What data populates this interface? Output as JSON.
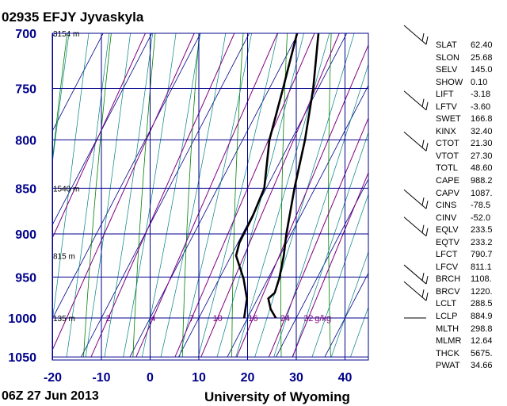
{
  "header": {
    "title": "02935 EFJY Jyvaskyla",
    "time": "06Z 27 Jun 2013",
    "source": "University of Wyoming"
  },
  "colors": {
    "grid": "#00008b",
    "temperature": "#000000",
    "dewpoint": "#000000",
    "dry_adiabat": "#008000",
    "moist_adiabat": "#008080",
    "mixing_ratio": "#800080",
    "tick_label": "#00008b"
  },
  "chart_data": {
    "type": "line",
    "title": "02935 EFJY Jyvaskyla",
    "xlabel": "",
    "ylabel": "",
    "x_axis": {
      "ticks": [
        -20,
        -10,
        0,
        10,
        20,
        30,
        40
      ],
      "range": [
        -20,
        45
      ]
    },
    "y_axis": {
      "scale": "log",
      "ticks": [
        700,
        750,
        800,
        850,
        900,
        950,
        1000,
        1050
      ],
      "range": [
        1050,
        700
      ]
    },
    "height_labels": [
      {
        "pressure": 700,
        "label": "3154 m"
      },
      {
        "pressure": 850,
        "label": "1540 m"
      },
      {
        "pressure": 925,
        "label": "815 m"
      },
      {
        "pressure": 1000,
        "label": "135 m"
      }
    ],
    "mixing_ratio_labels": [
      {
        "value": 2,
        "label": "2"
      },
      {
        "value": 4,
        "label": "4"
      },
      {
        "value": 7,
        "label": "7"
      },
      {
        "value": 10,
        "label": "10"
      },
      {
        "value": 16,
        "label": "16"
      },
      {
        "value": 24,
        "label": "24"
      },
      {
        "value": 32,
        "label": "32"
      }
    ],
    "mixing_ratio_unit": "g/kg",
    "series": [
      {
        "points": [
          {
            "p": 1000,
            "x": 25.8
          },
          {
            "p": 989,
            "x": 23.8
          },
          {
            "p": 976,
            "x": 22.2
          },
          {
            "p": 969,
            "x": 22.9
          },
          {
            "p": 952,
            "x": 22.3
          },
          {
            "p": 925,
            "x": 20.8
          },
          {
            "p": 900,
            "x": 19.0
          },
          {
            "p": 850,
            "x": 15.8
          },
          {
            "p": 800,
            "x": 12.8
          },
          {
            "p": 750,
            "x": 9.0
          },
          {
            "p": 700,
            "x": 4.2
          }
        ]
      },
      {
        "points": [
          {
            "p": 1000,
            "x": 19.3
          },
          {
            "p": 976,
            "x": 17.8
          },
          {
            "p": 952,
            "x": 15.0
          },
          {
            "p": 925,
            "x": 11.0
          },
          {
            "p": 910,
            "x": 10.3
          },
          {
            "p": 880,
            "x": 10.2
          },
          {
            "p": 850,
            "x": 9.6
          },
          {
            "p": 800,
            "x": 5.5
          },
          {
            "p": 750,
            "x": 2.8
          },
          {
            "p": 700,
            "x": -0.2
          }
        ]
      }
    ],
    "wind_barb_pressures": [
      700,
      760,
      800,
      860,
      890,
      945,
      965,
      1000
    ]
  },
  "indices": [
    {
      "name": "SLAT",
      "value": "62.40"
    },
    {
      "name": "SLON",
      "value": "25.68"
    },
    {
      "name": "SELV",
      "value": "145.0"
    },
    {
      "name": "SHOW",
      "value": "0.10"
    },
    {
      "name": "LIFT",
      "value": "-3.18"
    },
    {
      "name": "LFTV",
      "value": "-3.60"
    },
    {
      "name": "SWET",
      "value": "166.8"
    },
    {
      "name": "KINX",
      "value": "32.40"
    },
    {
      "name": "CTOT",
      "value": "21.30"
    },
    {
      "name": "VTOT",
      "value": "27.30"
    },
    {
      "name": "TOTL",
      "value": "48.60"
    },
    {
      "name": "CAPE",
      "value": "988.2"
    },
    {
      "name": "CAPV",
      "value": "1087."
    },
    {
      "name": "CINS",
      "value": "-78.5"
    },
    {
      "name": "CINV",
      "value": "-52.0"
    },
    {
      "name": "EQLV",
      "value": "233.5"
    },
    {
      "name": "EQTV",
      "value": "233.2"
    },
    {
      "name": "LFCT",
      "value": "790.7"
    },
    {
      "name": "LFCV",
      "value": "811.1"
    },
    {
      "name": "BRCH",
      "value": "1108."
    },
    {
      "name": "BRCV",
      "value": "1220."
    },
    {
      "name": "LCLT",
      "value": "288.5"
    },
    {
      "name": "LCLP",
      "value": "884.9"
    },
    {
      "name": "MLTH",
      "value": "298.8"
    },
    {
      "name": "MLMR",
      "value": "12.64"
    },
    {
      "name": "THCK",
      "value": "5675."
    },
    {
      "name": "PWAT",
      "value": "34.66"
    }
  ]
}
